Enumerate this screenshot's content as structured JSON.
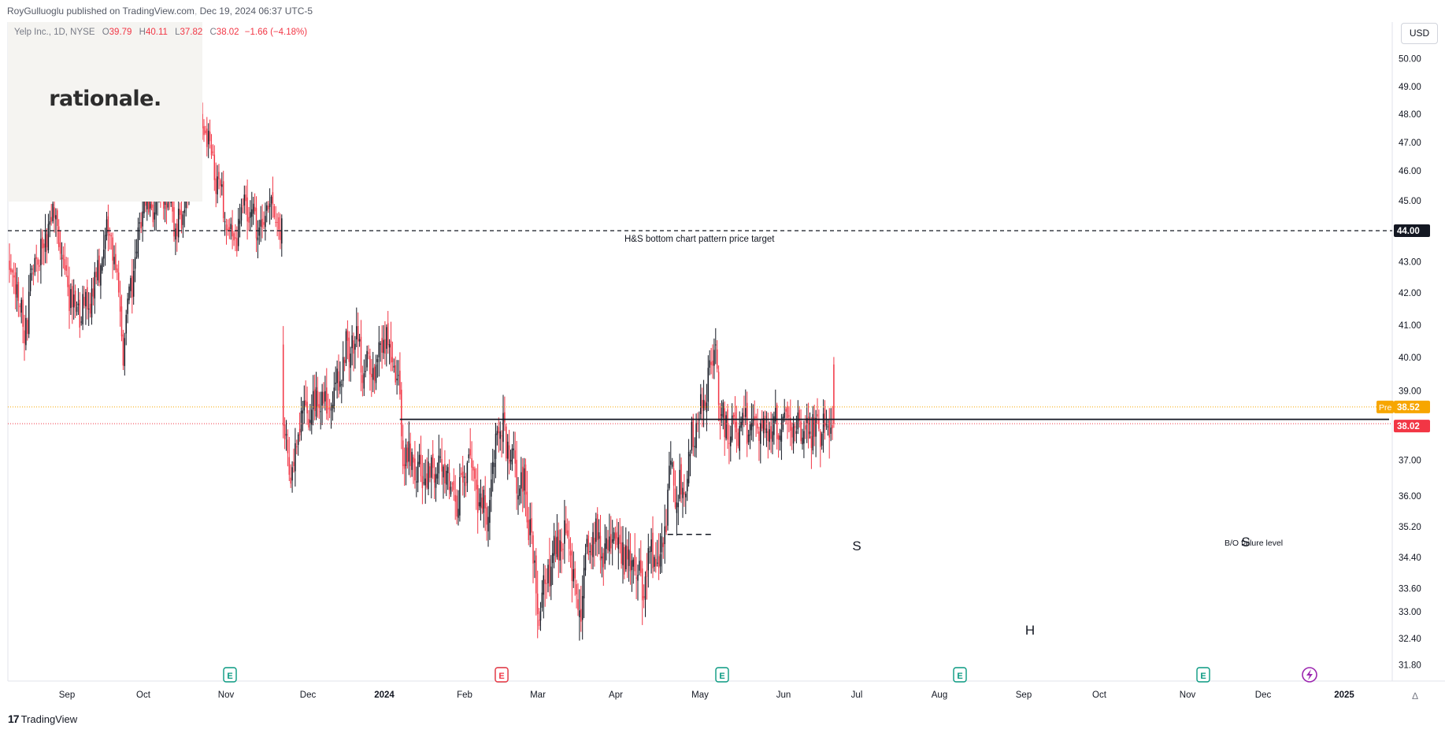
{
  "header": {
    "publisher": "RoyGulluoglu published on TradingView.com",
    "timestamp": "Dec 19, 2024 06:37 UTC-5"
  },
  "symbol": {
    "name": "Yelp Inc., 1D, NYSE",
    "o_label": "O",
    "o": "39.79",
    "h_label": "H",
    "h": "40.11",
    "l_label": "L",
    "l": "37.82",
    "c_label": "C",
    "c": "38.02",
    "change": "−1.66 (−4.18%)"
  },
  "watermark": "rationale.",
  "currency": "USD",
  "brand": "TradingView",
  "colors": {
    "up": "#131722",
    "down": "#f23645",
    "prelabel": "#f7a600",
    "last": "#f23645",
    "grid": "#f0f3fa"
  },
  "chart_data": {
    "type": "candlestick",
    "ylim": [
      31.6,
      50.3
    ],
    "yticks": [
      "31.80",
      "32.40",
      "33.00",
      "33.60",
      "34.40",
      "35.20",
      "36.00",
      "37.00",
      "38.00",
      "39.00",
      "40.00",
      "41.00",
      "42.00",
      "43.00",
      "44.00",
      "45.00",
      "46.00",
      "47.00",
      "48.00",
      "49.00",
      "50.00"
    ],
    "xticks": [
      "Sep",
      "Oct",
      "Nov",
      "Dec",
      "2024",
      "Feb",
      "Mar",
      "Apr",
      "May",
      "Jun",
      "Jul",
      "Aug",
      "Sep",
      "Oct",
      "Nov",
      "Dec",
      "2025"
    ],
    "price_labels": {
      "target": "44.00",
      "pre_tag": "Pre",
      "pre": "38.52",
      "last": "38.02"
    },
    "levels": {
      "target": 44.0,
      "neckline": 38.15,
      "failure": 35.0,
      "pre": 38.52,
      "last": 38.02
    },
    "annotations": {
      "target_text": "H&S bottom chart pattern price target",
      "failure_text": "B/O failure level",
      "left_shoulder": "S",
      "head": "H",
      "right_shoulder": "S"
    },
    "earnings_marker": "E",
    "anchors": [
      [
        0,
        42.8
      ],
      [
        6,
        42.0
      ],
      [
        10,
        40.6
      ],
      [
        14,
        42.2
      ],
      [
        20,
        43.1
      ],
      [
        27,
        44.4
      ],
      [
        33,
        44.0
      ],
      [
        38,
        42.3
      ],
      [
        45,
        41.5
      ],
      [
        52,
        41.7
      ],
      [
        60,
        42.8
      ],
      [
        66,
        44.2
      ],
      [
        72,
        42.7
      ],
      [
        76,
        40.0
      ],
      [
        80,
        42.0
      ],
      [
        85,
        43.3
      ],
      [
        90,
        45.1
      ],
      [
        96,
        44.5
      ],
      [
        102,
        45.6
      ],
      [
        108,
        44.6
      ],
      [
        114,
        44.0
      ],
      [
        120,
        45.5
      ],
      [
        126,
        48.2
      ],
      [
        132,
        47.3
      ],
      [
        138,
        45.9
      ],
      [
        144,
        44.4
      ],
      [
        150,
        43.6
      ],
      [
        156,
        44.8
      ],
      [
        162,
        44.6
      ],
      [
        168,
        44.0
      ],
      [
        174,
        45.0
      ],
      [
        178,
        44.3
      ],
      [
        182,
        44.2
      ],
      [
        183,
        37.9
      ],
      [
        189,
        36.4
      ],
      [
        195,
        38.3
      ],
      [
        201,
        38.3
      ],
      [
        207,
        38.9
      ],
      [
        213,
        38.4
      ],
      [
        219,
        39.2
      ],
      [
        225,
        40.2
      ],
      [
        231,
        40.6
      ],
      [
        237,
        39.7
      ],
      [
        243,
        39.5
      ],
      [
        249,
        40.6
      ],
      [
        255,
        40.2
      ],
      [
        259,
        39.5
      ],
      [
        263,
        37.4
      ],
      [
        270,
        36.8
      ],
      [
        276,
        36.3
      ],
      [
        282,
        36.6
      ],
      [
        288,
        36.9
      ],
      [
        294,
        36.4
      ],
      [
        300,
        35.9
      ],
      [
        306,
        36.9
      ],
      [
        312,
        36.3
      ],
      [
        318,
        35.6
      ],
      [
        322,
        36.6
      ],
      [
        327,
        38.0
      ],
      [
        331,
        37.6
      ],
      [
        335,
        37.3
      ],
      [
        339,
        36.6
      ],
      [
        345,
        36.1
      ],
      [
        349,
        34.9
      ],
      [
        353,
        33.2
      ],
      [
        359,
        34.0
      ],
      [
        365,
        34.6
      ],
      [
        371,
        35.0
      ],
      [
        376,
        34.3
      ],
      [
        381,
        33.0
      ],
      [
        386,
        34.7
      ],
      [
        392,
        34.9
      ],
      [
        398,
        34.3
      ],
      [
        404,
        34.9
      ],
      [
        410,
        34.6
      ],
      [
        416,
        34.3
      ],
      [
        422,
        33.5
      ],
      [
        428,
        34.6
      ],
      [
        434,
        34.1
      ],
      [
        438,
        35.2
      ],
      [
        442,
        37.0
      ],
      [
        446,
        36.0
      ],
      [
        452,
        36.3
      ],
      [
        456,
        37.6
      ],
      [
        462,
        38.4
      ],
      [
        468,
        39.7
      ],
      [
        473,
        40.3
      ],
      [
        475,
        38.0
      ]
    ]
  }
}
